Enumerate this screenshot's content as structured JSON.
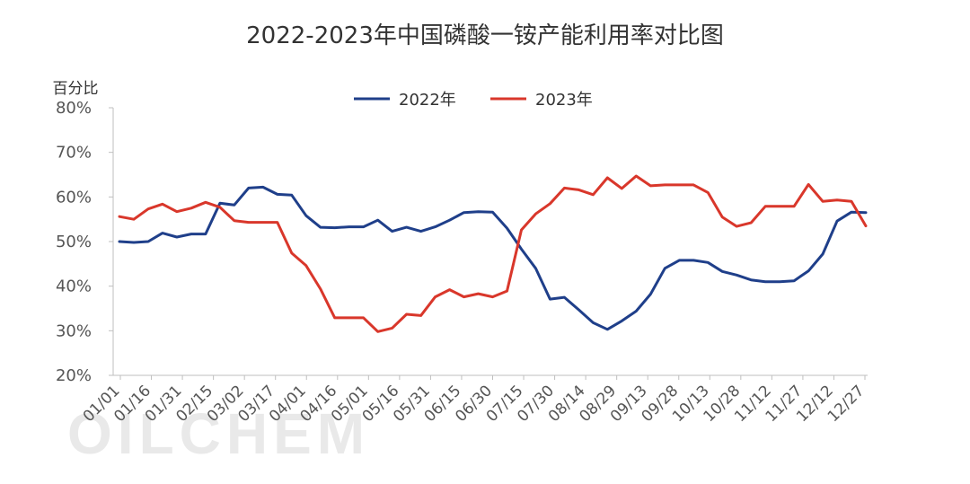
{
  "chart_data": {
    "type": "line",
    "title": "2022-2023年中国磷酸一铵产能利用率对比图",
    "ylabel": "百分比",
    "xlabel": "",
    "ylim": [
      20,
      80
    ],
    "yticks": [
      "20%",
      "30%",
      "40%",
      "50%",
      "60%",
      "70%",
      "80%"
    ],
    "ytick_values": [
      20,
      30,
      40,
      50,
      60,
      70,
      80
    ],
    "x_tick_labels": [
      "01/01",
      "01/16",
      "01/31",
      "02/15",
      "03/02",
      "03/17",
      "04/01",
      "04/16",
      "05/01",
      "05/16",
      "05/31",
      "06/15",
      "06/30",
      "07/15",
      "07/30",
      "08/14",
      "08/29",
      "09/13",
      "09/28",
      "10/13",
      "10/28",
      "11/12",
      "11/27",
      "12/12",
      "12/27"
    ],
    "legend_position": "top-center",
    "grid": false,
    "watermark": "OILCHEM",
    "series": [
      {
        "name": "2022年",
        "color": "#1f3f8a",
        "values": [
          50.0,
          49.8,
          50.0,
          51.9,
          51.0,
          51.7,
          51.7,
          58.6,
          58.2,
          62.0,
          62.2,
          60.6,
          60.4,
          55.8,
          53.2,
          53.1,
          53.3,
          53.3,
          54.8,
          52.3,
          53.2,
          52.3,
          53.3,
          54.8,
          56.5,
          56.7,
          56.6,
          53.0,
          48.3,
          44.0,
          37.1,
          37.5,
          34.7,
          31.8,
          30.3,
          32.2,
          34.4,
          38.2,
          44.0,
          45.8,
          45.8,
          45.3,
          43.3,
          42.5,
          41.4,
          41.0,
          41.0,
          41.2,
          43.4,
          47.2,
          54.6,
          56.6,
          56.5
        ]
      },
      {
        "name": "2023年",
        "color": "#d9372b",
        "values": [
          55.6,
          55.0,
          57.3,
          58.4,
          56.7,
          57.5,
          58.8,
          57.7,
          54.7,
          54.3,
          54.3,
          54.3,
          47.4,
          44.6,
          39.4,
          32.9,
          32.9,
          32.9,
          29.8,
          30.6,
          33.7,
          33.4,
          37.6,
          39.2,
          37.6,
          38.3,
          37.6,
          38.9,
          52.6,
          56.2,
          58.5,
          62.0,
          61.6,
          60.5,
          64.3,
          61.9,
          64.7,
          62.5,
          62.7,
          62.7,
          62.7,
          61.0,
          55.5,
          53.4,
          54.2,
          57.9,
          57.9,
          57.9,
          62.8,
          59.0,
          59.3,
          59.0,
          53.5
        ]
      }
    ]
  }
}
